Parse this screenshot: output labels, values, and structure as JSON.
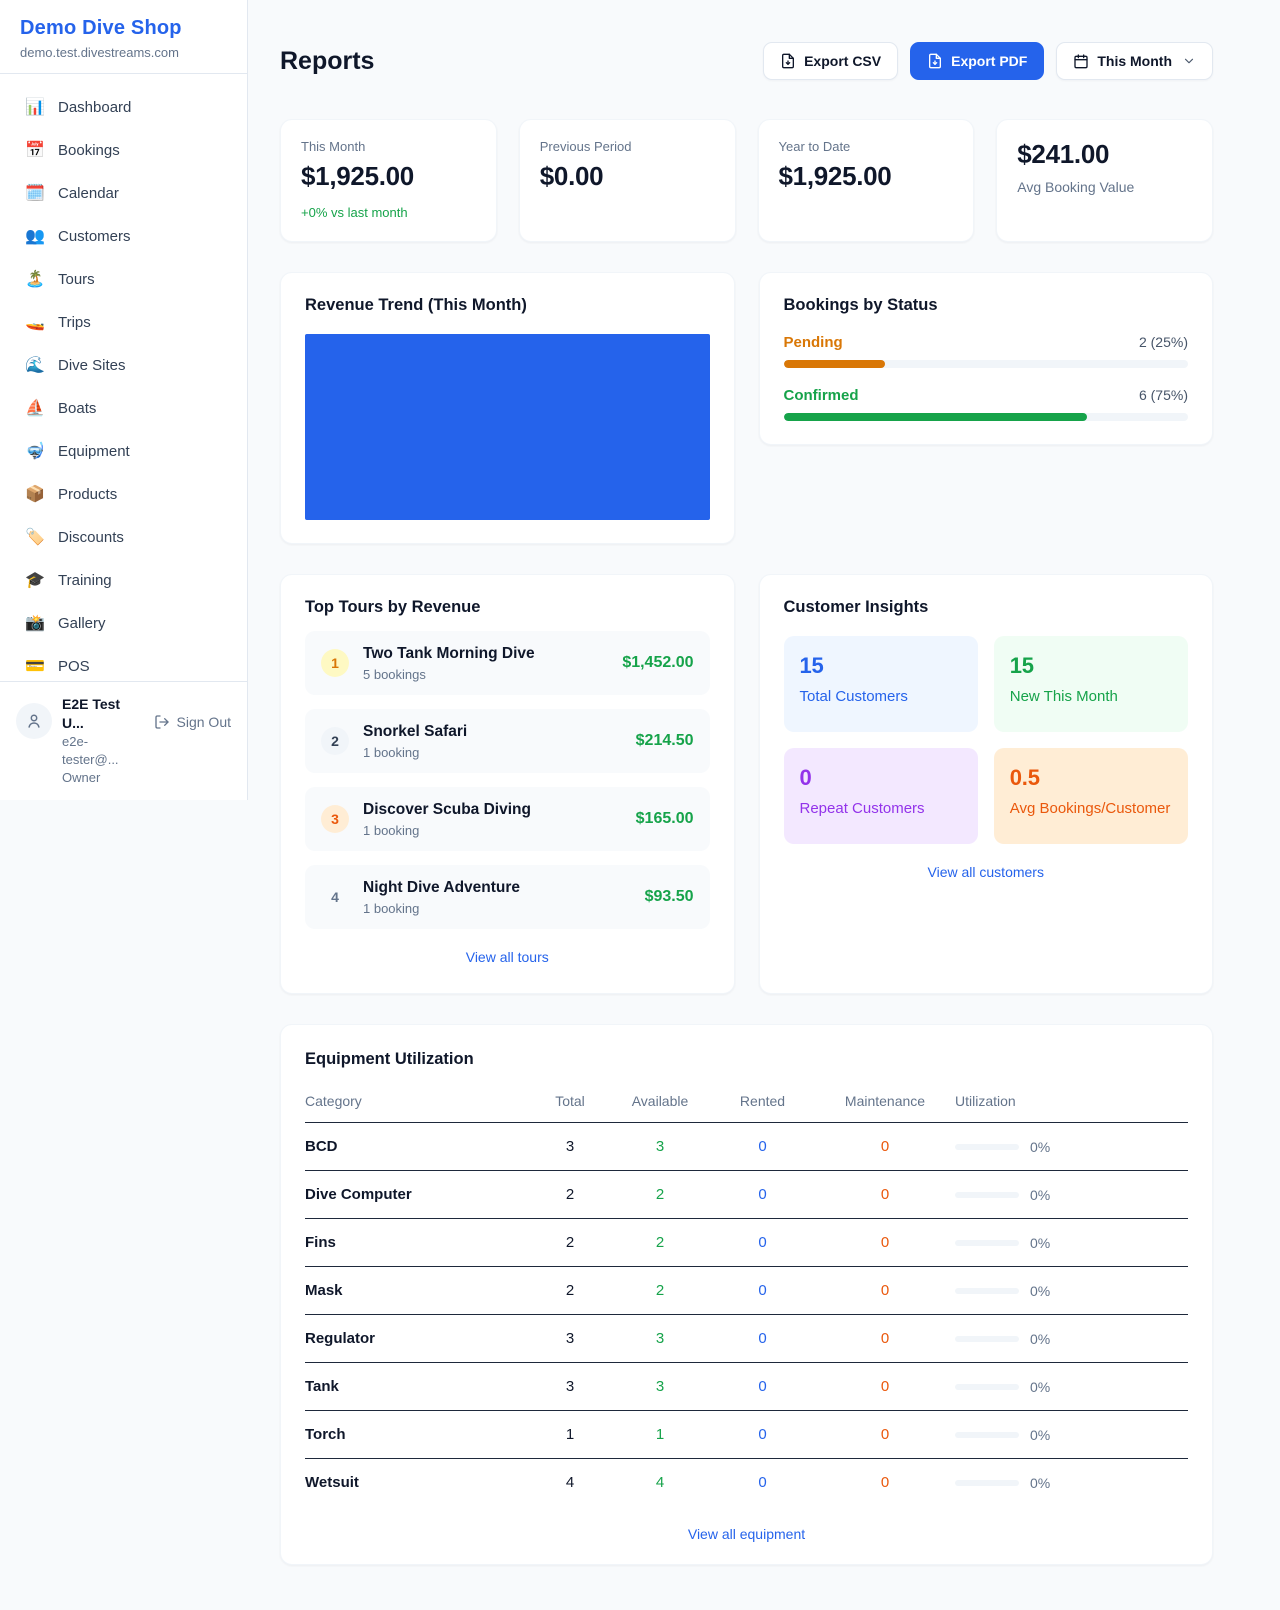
{
  "colors": {
    "accent": "#2563eb",
    "positive": "#16a34a",
    "pending": "#d97706",
    "maintenance": "#ea580c",
    "chart_bar": "#2563eb"
  },
  "sidebar": {
    "brand": {
      "name": "Demo Dive Shop",
      "domain": "demo.test.divestreams.com"
    },
    "items": [
      {
        "icon": "📊",
        "label": "Dashboard"
      },
      {
        "icon": "📅",
        "label": "Bookings"
      },
      {
        "icon": "🗓️",
        "label": "Calendar"
      },
      {
        "icon": "👥",
        "label": "Customers"
      },
      {
        "icon": "🏝️",
        "label": "Tours"
      },
      {
        "icon": "🚤",
        "label": "Trips"
      },
      {
        "icon": "🌊",
        "label": "Dive Sites"
      },
      {
        "icon": "⛵",
        "label": "Boats"
      },
      {
        "icon": "🤿",
        "label": "Equipment"
      },
      {
        "icon": "📦",
        "label": "Products"
      },
      {
        "icon": "🏷️",
        "label": "Discounts"
      },
      {
        "icon": "🎓",
        "label": "Training"
      },
      {
        "icon": "📸",
        "label": "Gallery"
      },
      {
        "icon": "💳",
        "label": "POS"
      }
    ],
    "user": {
      "name": "E2E Test U...",
      "email": "e2e-tester@...",
      "role": "Owner",
      "sign_out": "Sign Out"
    }
  },
  "header": {
    "title": "Reports",
    "export_csv": "Export CSV",
    "export_pdf": "Export PDF",
    "period": "This Month"
  },
  "stats": {
    "this_month": {
      "label": "This Month",
      "value": "$1,925.00",
      "delta": "+0% vs last month"
    },
    "previous_period": {
      "label": "Previous Period",
      "value": "$0.00"
    },
    "year_to_date": {
      "label": "Year to Date",
      "value": "$1,925.00"
    },
    "avg_booking": {
      "value": "$241.00",
      "label": "Avg Booking Value"
    }
  },
  "revenue_trend": {
    "title": "Revenue Trend (This Month)"
  },
  "bookings_by_status": {
    "title": "Bookings by Status",
    "rows": [
      {
        "label": "Pending",
        "value": "2 (25%)",
        "percent": 25,
        "color": "#d97706"
      },
      {
        "label": "Confirmed",
        "value": "6 (75%)",
        "percent": 75,
        "color": "#16a34a"
      }
    ]
  },
  "top_tours": {
    "title": "Top Tours by Revenue",
    "rows": [
      {
        "rank": "1",
        "name": "Two Tank Morning Dive",
        "bookings": "5 bookings",
        "revenue": "$1,452.00"
      },
      {
        "rank": "2",
        "name": "Snorkel Safari",
        "bookings": "1 booking",
        "revenue": "$214.50"
      },
      {
        "rank": "3",
        "name": "Discover Scuba Diving",
        "bookings": "1 booking",
        "revenue": "$165.00"
      },
      {
        "rank": "4",
        "name": "Night Dive Adventure",
        "bookings": "1 booking",
        "revenue": "$93.50"
      }
    ],
    "view_all": "View all tours"
  },
  "customer_insights": {
    "title": "Customer Insights",
    "tiles": [
      {
        "value": "15",
        "label": "Total Customers"
      },
      {
        "value": "15",
        "label": "New This Month"
      },
      {
        "value": "0",
        "label": "Repeat Customers"
      },
      {
        "value": "0.5",
        "label": "Avg Bookings/Customer"
      }
    ],
    "view_all": "View all customers"
  },
  "equipment": {
    "title": "Equipment Utilization",
    "columns": [
      "Category",
      "Total",
      "Available",
      "Rented",
      "Maintenance",
      "Utilization"
    ],
    "rows": [
      {
        "category": "BCD",
        "total": "3",
        "available": "3",
        "rented": "0",
        "maintenance": "0",
        "utilization": "0%",
        "utilization_percent": 0
      },
      {
        "category": "Dive Computer",
        "total": "2",
        "available": "2",
        "rented": "0",
        "maintenance": "0",
        "utilization": "0%",
        "utilization_percent": 0
      },
      {
        "category": "Fins",
        "total": "2",
        "available": "2",
        "rented": "0",
        "maintenance": "0",
        "utilization": "0%",
        "utilization_percent": 0
      },
      {
        "category": "Mask",
        "total": "2",
        "available": "2",
        "rented": "0",
        "maintenance": "0",
        "utilization": "0%",
        "utilization_percent": 0
      },
      {
        "category": "Regulator",
        "total": "3",
        "available": "3",
        "rented": "0",
        "maintenance": "0",
        "utilization": "0%",
        "utilization_percent": 0
      },
      {
        "category": "Tank",
        "total": "3",
        "available": "3",
        "rented": "0",
        "maintenance": "0",
        "utilization": "0%",
        "utilization_percent": 0
      },
      {
        "category": "Torch",
        "total": "1",
        "available": "1",
        "rented": "0",
        "maintenance": "0",
        "utilization": "0%",
        "utilization_percent": 0
      },
      {
        "category": "Wetsuit",
        "total": "4",
        "available": "4",
        "rented": "0",
        "maintenance": "0",
        "utilization": "0%",
        "utilization_percent": 0
      }
    ],
    "view_all": "View all equipment"
  }
}
